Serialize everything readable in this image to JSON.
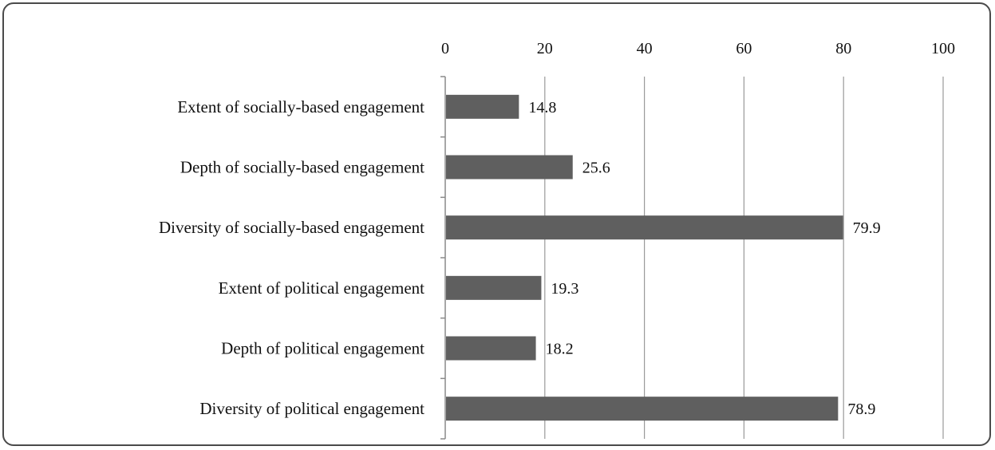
{
  "chart_data": {
    "type": "bar",
    "orientation": "horizontal",
    "title": "",
    "xlabel": "",
    "ylabel": "",
    "xlim": [
      0,
      100
    ],
    "x_ticks": [
      "0",
      "20",
      "40",
      "60",
      "80",
      "100"
    ],
    "x_axis_position": "top",
    "grid": true,
    "legend": "none",
    "bar_color": "#5f5f5f",
    "categories": [
      "Extent of socially-based engagement",
      "Depth of socially-based engagement",
      "Diversity of socially-based engagement",
      "Extent of political engagement",
      "Depth of political engagement",
      "Diversity of political engagement"
    ],
    "values": [
      14.8,
      25.6,
      79.9,
      19.3,
      18.2,
      78.9
    ],
    "data_labels": [
      "14.8",
      "25.6",
      "79.9",
      "19.3",
      "18.2",
      "78.9"
    ]
  }
}
